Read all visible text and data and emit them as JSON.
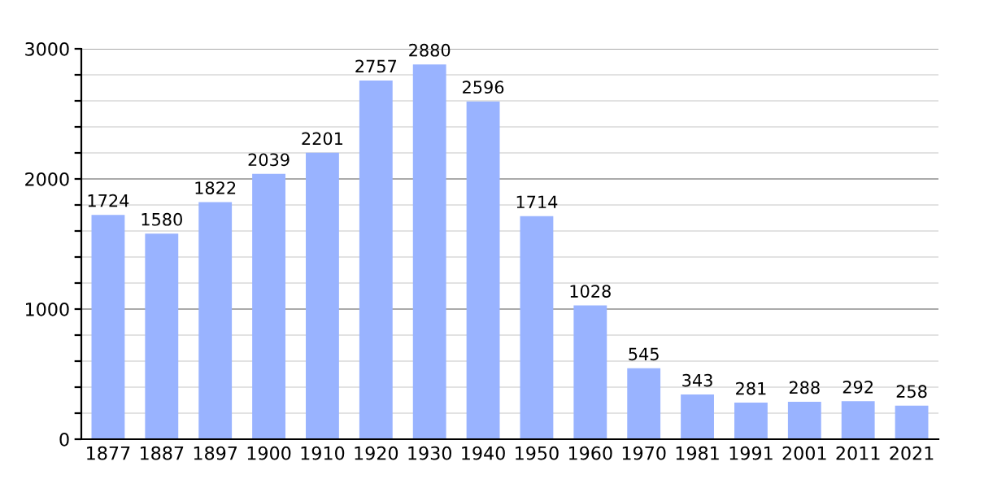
{
  "chart_data": {
    "type": "bar",
    "categories": [
      "1877",
      "1887",
      "1897",
      "1900",
      "1910",
      "1920",
      "1930",
      "1940",
      "1950",
      "1960",
      "1970",
      "1981",
      "1991",
      "2001",
      "2011",
      "2021"
    ],
    "values": [
      1724,
      1580,
      1822,
      2039,
      2201,
      2757,
      2880,
      2596,
      1714,
      1028,
      545,
      343,
      281,
      288,
      292,
      258
    ],
    "color": "#99b3ff",
    "data_labels": true,
    "grid": "y",
    "ylim": [
      0,
      3000
    ],
    "yticks": [
      0,
      {
        "value": 200,
        "label": null
      },
      {
        "value": 400,
        "label": null
      },
      {
        "value": 600,
        "label": null
      },
      {
        "value": 800,
        "label": null
      },
      1000,
      {
        "value": 1200,
        "label": null
      },
      {
        "value": 1400,
        "label": null
      },
      {
        "value": 1600,
        "label": null
      },
      {
        "value": 1800,
        "label": null
      },
      2000,
      {
        "value": 2200,
        "label": null
      },
      {
        "value": 2400,
        "label": null
      },
      {
        "value": 2600,
        "label": null
      },
      {
        "value": 2800,
        "label": null
      },
      3000
    ]
  }
}
